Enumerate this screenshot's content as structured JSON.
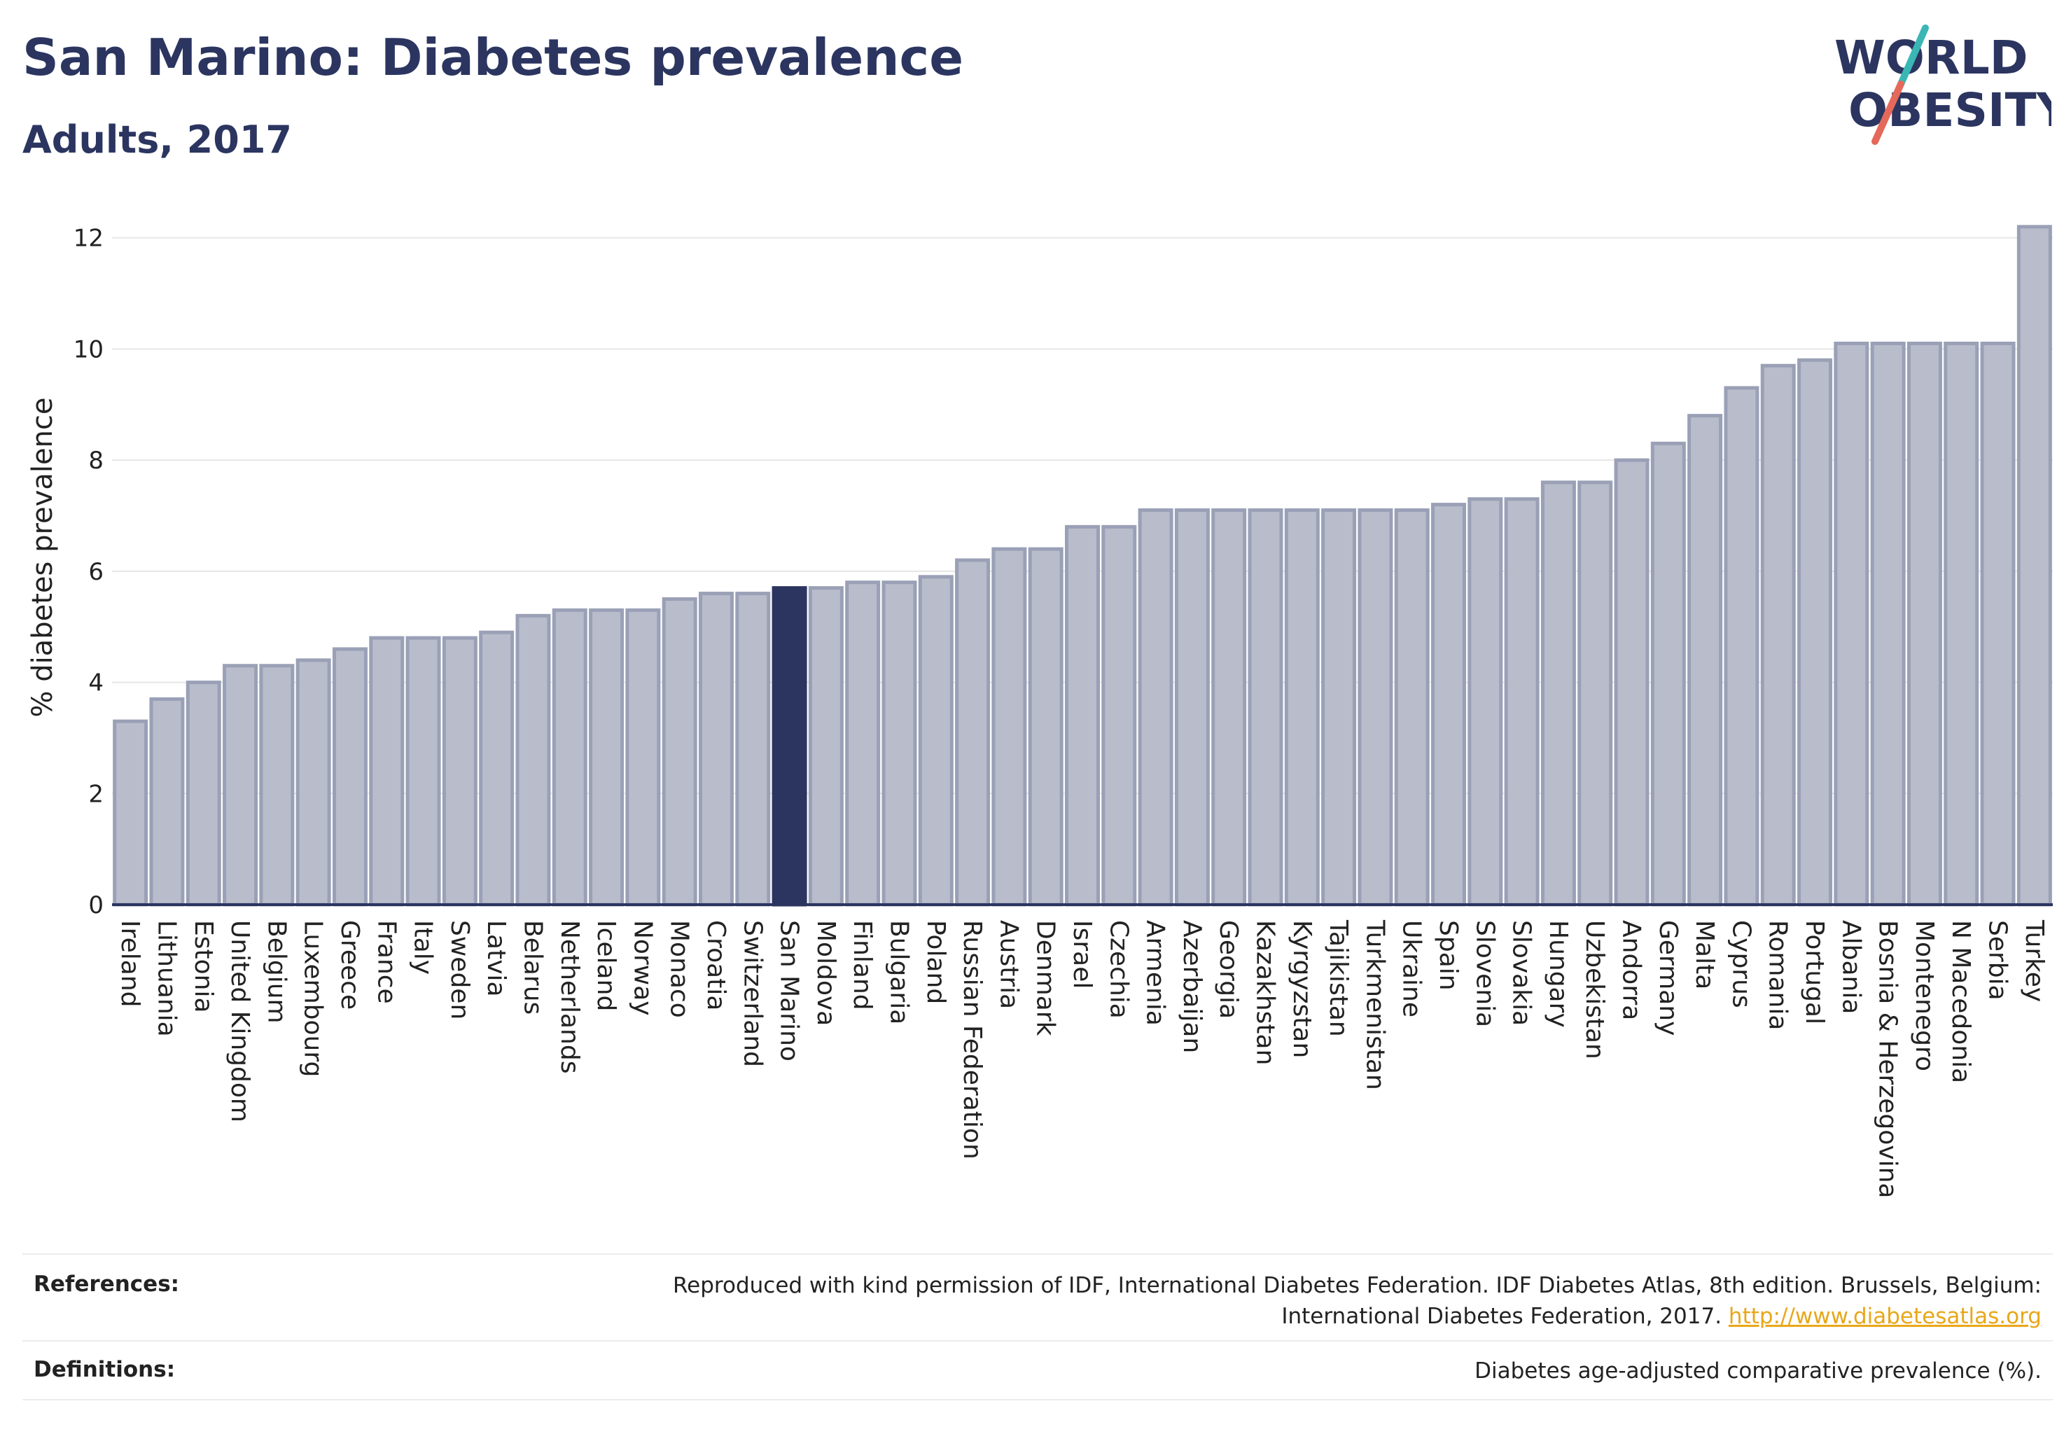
{
  "header": {
    "title": "San Marino: Diabetes prevalence",
    "subtitle": "Adults, 2017"
  },
  "logo": {
    "line1": "WORLD",
    "line2": "OBESITY",
    "slash_colors": [
      "#3ab7b5",
      "#e5695a"
    ]
  },
  "footer": {
    "references_label": "References:",
    "references_line1": "Reproduced with kind permission of IDF, International Diabetes Federation. IDF Diabetes Atlas, 8th edition. Brussels, Belgium:",
    "references_line2": "International Diabetes Federation, 2017.",
    "references_link": "http://www.diabetesatlas.org",
    "definitions_label": "Definitions:",
    "definitions_text": "Diabetes age-adjusted comparative prevalence (%)."
  },
  "colors": {
    "bar": "#b8bccb",
    "bar_border": "#9aa0b6",
    "highlight": "#2b3560",
    "grid": "#e6e6e6",
    "axis": "#2b3560"
  },
  "chart_data": {
    "type": "bar",
    "title": "San Marino: Diabetes prevalence",
    "subtitle": "Adults, 2017",
    "ylabel": "% diabetes prevalence",
    "xlabel": "",
    "ylim": [
      0,
      12.5
    ],
    "yticks": [
      0,
      2,
      4,
      6,
      8,
      10,
      12
    ],
    "grid": true,
    "highlight": "San Marino",
    "categories": [
      "Ireland",
      "Lithuania",
      "Estonia",
      "United Kingdom",
      "Belgium",
      "Luxembourg",
      "Greece",
      "France",
      "Italy",
      "Sweden",
      "Latvia",
      "Belarus",
      "Netherlands",
      "Iceland",
      "Norway",
      "Monaco",
      "Croatia",
      "Switzerland",
      "San Marino",
      "Moldova",
      "Finland",
      "Bulgaria",
      "Poland",
      "Russian Federation",
      "Austria",
      "Denmark",
      "Israel",
      "Czechia",
      "Armenia",
      "Azerbaijan",
      "Georgia",
      "Kazakhstan",
      "Kyrgyzstan",
      "Tajikistan",
      "Turkmenistan",
      "Ukraine",
      "Spain",
      "Slovenia",
      "Slovakia",
      "Hungary",
      "Uzbekistan",
      "Andorra",
      "Germany",
      "Malta",
      "Cyprus",
      "Romania",
      "Portugal",
      "Albania",
      "Bosnia & Herzegovina",
      "Montenegro",
      "N Macedonia",
      "Serbia",
      "Turkey"
    ],
    "values": [
      3.3,
      3.7,
      4.0,
      4.3,
      4.3,
      4.4,
      4.6,
      4.8,
      4.8,
      4.8,
      4.9,
      5.2,
      5.3,
      5.3,
      5.3,
      5.5,
      5.6,
      5.6,
      5.7,
      5.7,
      5.8,
      5.8,
      5.9,
      6.2,
      6.4,
      6.4,
      6.8,
      6.8,
      7.1,
      7.1,
      7.1,
      7.1,
      7.1,
      7.1,
      7.1,
      7.1,
      7.2,
      7.3,
      7.3,
      7.6,
      7.6,
      8.0,
      8.3,
      8.8,
      9.3,
      9.7,
      9.8,
      10.1,
      10.1,
      10.1,
      10.1,
      10.1,
      12.2
    ]
  }
}
